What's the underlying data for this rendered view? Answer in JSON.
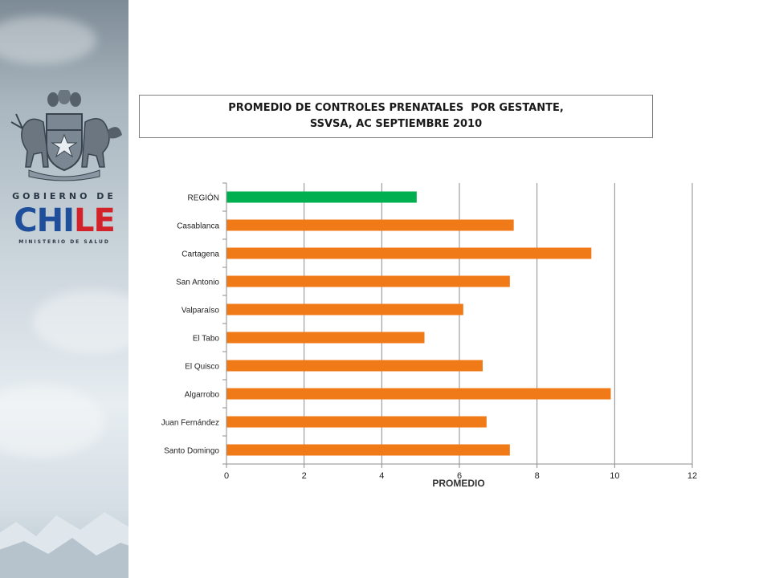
{
  "branding": {
    "gov_label": "GOBIERNO DE",
    "chile_part1": "CHI",
    "chile_part2": "LE",
    "ministry_label": "MINISTERIO DE SALUD",
    "icons": [
      "coat-of-arms-icon"
    ]
  },
  "title": {
    "line1": "PROMEDIO DE CONTROLES PRENATALES  POR GESTANTE,",
    "line2": "SSVSA, AC SEPTIEMBRE 2010"
  },
  "chart_data": {
    "type": "bar",
    "orientation": "horizontal",
    "categories": [
      "REGIÓN",
      "Casablanca",
      "Cartagena",
      "San Antonio",
      "Valparaíso",
      "El Tabo",
      "El Quisco",
      "Algarrobo",
      "Juan Fernández",
      "Santo Domingo"
    ],
    "values": [
      4.9,
      7.4,
      9.4,
      7.3,
      6.1,
      5.1,
      6.6,
      9.9,
      6.7,
      7.3
    ],
    "colors": [
      "#00b050",
      "#f07a17",
      "#f07a17",
      "#f07a17",
      "#f07a17",
      "#f07a17",
      "#f07a17",
      "#f07a17",
      "#f07a17",
      "#f07a17"
    ],
    "xlabel": "PROMEDIO",
    "xlim": [
      0,
      12
    ],
    "xticks": [
      0,
      2,
      4,
      6,
      8,
      10,
      12
    ],
    "grid": "vertical",
    "legend": "none"
  }
}
